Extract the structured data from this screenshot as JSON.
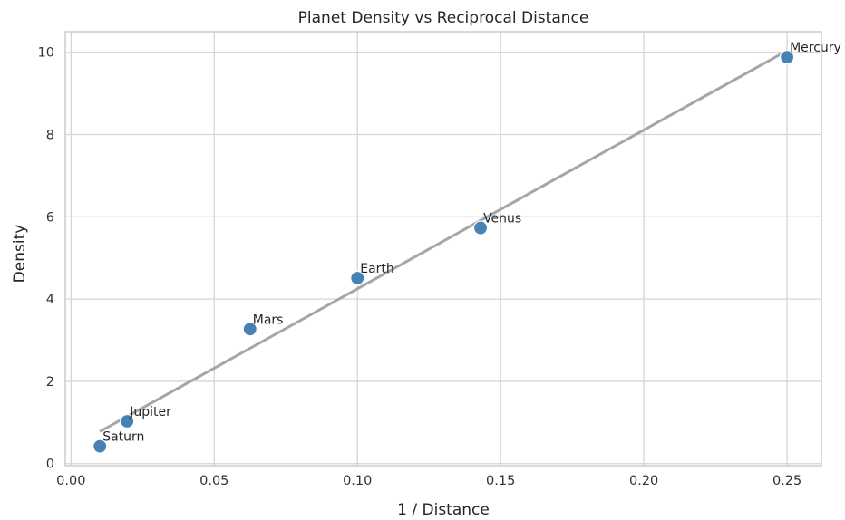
{
  "chart_data": {
    "type": "scatter",
    "title": "Planet Density vs Reciprocal Distance",
    "xlabel": "1 / Distance",
    "ylabel": "Density",
    "xlim": [
      -0.002,
      0.262
    ],
    "ylim": [
      -0.05,
      10.5
    ],
    "xticks": [
      0.0,
      0.05,
      0.1,
      0.15,
      0.2,
      0.25
    ],
    "xtick_labels": [
      "0.00",
      "0.05",
      "0.10",
      "0.15",
      "0.20",
      "0.25"
    ],
    "yticks": [
      0,
      2,
      4,
      6,
      8,
      10
    ],
    "ytick_labels": [
      "0",
      "2",
      "4",
      "6",
      "8",
      "10"
    ],
    "grid": true,
    "colors": {
      "point": "#4682b4",
      "fit_line": "#a6a6a6",
      "grid": "#d6d6d6",
      "frame": "#cccccc"
    },
    "points": [
      {
        "label": "Mercury",
        "x": 0.25,
        "y": 9.88
      },
      {
        "label": "Venus",
        "x": 0.143,
        "y": 5.73
      },
      {
        "label": "Earth",
        "x": 0.1,
        "y": 4.51
      },
      {
        "label": "Mars",
        "x": 0.0625,
        "y": 3.27
      },
      {
        "label": "Jupiter",
        "x": 0.0196,
        "y": 1.03
      },
      {
        "label": "Saturn",
        "x": 0.0101,
        "y": 0.42
      }
    ],
    "fit_line": {
      "x": [
        0.0101,
        0.25
      ],
      "y": [
        0.78,
        10.04
      ]
    }
  }
}
